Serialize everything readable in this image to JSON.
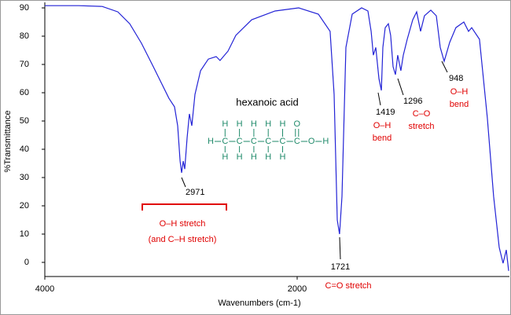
{
  "chart_data": {
    "type": "line",
    "xlabel": "Wavenumbers (cm-1)",
    "ylabel": "%Transmittance",
    "xlim": [
      4000,
      324
    ],
    "ylim": [
      -5,
      91.4
    ],
    "xticks": [
      4000,
      2000
    ],
    "yticks": [
      0,
      10,
      20,
      30,
      40,
      50,
      60,
      70,
      80,
      90
    ],
    "color": "#2323d6",
    "x": [
      4000,
      3732,
      3545,
      3421,
      3327,
      3234,
      3140,
      3078,
      3016,
      2972,
      2947,
      2928,
      2916,
      2903,
      2891,
      2872,
      2854,
      2835,
      2810,
      2766,
      2704,
      2642,
      2611,
      2548,
      2486,
      2361,
      2175,
      1988,
      1832,
      1739,
      1707,
      1682,
      1664,
      1645,
      1614,
      1564,
      1489,
      1439,
      1414,
      1396,
      1377,
      1352,
      1333,
      1321,
      1302,
      1277,
      1259,
      1240,
      1221,
      1203,
      1178,
      1159,
      1128,
      1084,
      1053,
      1022,
      991,
      941,
      897,
      866,
      835,
      791,
      742,
      679,
      642,
      617,
      555,
      493,
      443,
      399,
      368,
      343,
      324
    ],
    "values": [
      90.8,
      90.8,
      90.5,
      88.6,
      84.4,
      77.5,
      69.2,
      63.6,
      58,
      55,
      48.3,
      35.8,
      31.7,
      35.8,
      33,
      44,
      52.5,
      48.3,
      59.4,
      67.8,
      71.9,
      72.8,
      71.4,
      74.7,
      80.3,
      85.8,
      88.9,
      90,
      87.8,
      81.7,
      59.4,
      15,
      10,
      23.3,
      76,
      87.8,
      90,
      88.9,
      81.7,
      73.3,
      76,
      65,
      60.8,
      76,
      83,
      84.4,
      80.3,
      69.2,
      66.4,
      73.3,
      67.8,
      73.3,
      78.9,
      85.8,
      88.6,
      81.7,
      87.2,
      89.2,
      87.2,
      76,
      71.1,
      77.8,
      83,
      85,
      81.7,
      83,
      78.9,
      51.1,
      23.3,
      5.3,
      -0.3,
      4.4,
      -3
    ],
    "annotation_color": "#e00000",
    "peaks": [
      {
        "wavenumber": 2971,
        "label": [
          "O–H stretch",
          "(and C–H stretch)"
        ]
      },
      {
        "wavenumber": 1721,
        "label": [
          "C=O stretch"
        ]
      },
      {
        "wavenumber": 1419,
        "label": [
          "O–H",
          "bend"
        ]
      },
      {
        "wavenumber": 1296,
        "label": [
          "C–O",
          "stretch"
        ]
      },
      {
        "wavenumber": 948,
        "label": [
          "O–H",
          "bend"
        ]
      }
    ],
    "structure": {
      "name": "hexanoic acid",
      "chain": [
        "H",
        "C",
        "C",
        "C",
        "C",
        "C",
        "C",
        "O",
        "H"
      ],
      "top": [
        "H",
        "H",
        "H",
        "H",
        "H",
        "O"
      ],
      "bottom": [
        "H",
        "H",
        "H",
        "H",
        "H"
      ]
    }
  }
}
